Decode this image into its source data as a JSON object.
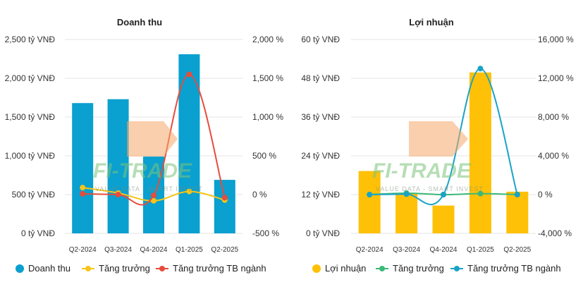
{
  "chart_data": [
    {
      "type": "bar",
      "title": "Doanh thu",
      "categories": [
        "Q2-2024",
        "Q3-2024",
        "Q4-2024",
        "Q1-2025",
        "Q2-2025"
      ],
      "ylim": [
        0,
        2500
      ],
      "yticks": [
        "0 tỷ VNĐ",
        "500 tỷ VNĐ",
        "1,000 tỷ VNĐ",
        "1,500 tỷ VNĐ",
        "2,000 tỷ VNĐ",
        "2,500 tỷ VNĐ"
      ],
      "y2lim": [
        -500,
        2000
      ],
      "y2ticks": [
        "-500 %",
        "0 %",
        "500 %",
        "1,000 %",
        "1,500 %",
        "2,000 %"
      ],
      "series": [
        {
          "name": "Doanh thu",
          "kind": "bar",
          "axis": "left",
          "color": "#0aa0cf",
          "values": [
            1680,
            1730,
            990,
            2310,
            690
          ]
        },
        {
          "name": "Tăng trưởng",
          "kind": "line",
          "axis": "right",
          "color": "#f5c518",
          "values": [
            90,
            20,
            -80,
            40,
            -70
          ]
        },
        {
          "name": "Tăng trưởng TB ngành",
          "kind": "line",
          "axis": "right",
          "color": "#e74c3c",
          "values": [
            10,
            0,
            -10,
            1550,
            -40
          ]
        }
      ],
      "grid": true,
      "legend_position": "bottom"
    },
    {
      "type": "bar",
      "title": "Lợi nhuận",
      "categories": [
        "Q2-2024",
        "Q3-2024",
        "Q4-2024",
        "Q1-2025",
        "Q2-2025"
      ],
      "ylim": [
        0,
        60
      ],
      "yticks": [
        "0 tỷ VNĐ",
        "12 tỷ VNĐ",
        "24 tỷ VNĐ",
        "36 tỷ VNĐ",
        "48 tỷ VNĐ",
        "60 tỷ VNĐ"
      ],
      "y2lim": [
        -4000,
        16000
      ],
      "y2ticks": [
        "-4,000 %",
        "0 %",
        "4,000 %",
        "8,000 %",
        "12,000 %",
        "16,000 %"
      ],
      "series": [
        {
          "name": "Lợi nhuận",
          "kind": "bar",
          "axis": "left",
          "color": "#ffc107",
          "values": [
            19.3,
            12.3,
            8.6,
            49.8,
            12.9
          ]
        },
        {
          "name": "Tăng trưởng",
          "kind": "line",
          "axis": "right",
          "color": "#3cb878",
          "values": [
            0,
            150,
            0,
            100,
            0
          ]
        },
        {
          "name": "Tăng trưởng TB ngành",
          "kind": "line",
          "axis": "right",
          "color": "#1ba3c6",
          "values": [
            0,
            50,
            0,
            13000,
            0
          ]
        }
      ],
      "grid": true,
      "legend_position": "bottom"
    }
  ],
  "watermark": {
    "brand": "FI-TRADE",
    "tagline": "VALUE DATA - SMART INVEST"
  }
}
